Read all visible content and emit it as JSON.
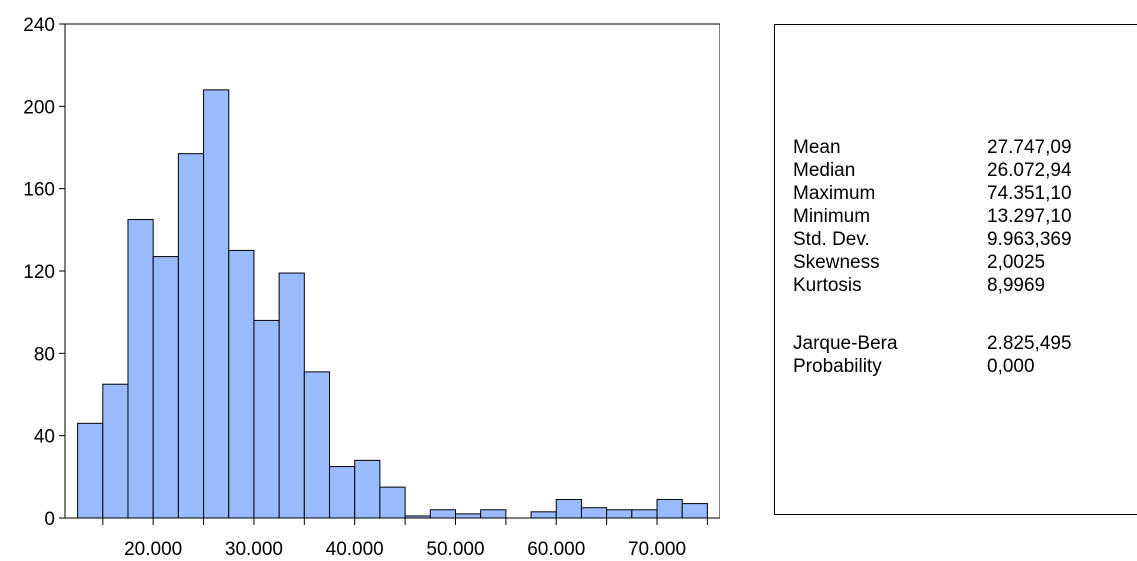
{
  "chart_data": {
    "type": "bar",
    "subtype": "histogram",
    "bin_width": 2500,
    "bins": [
      {
        "x0": 12500,
        "x1": 15000,
        "count": 46
      },
      {
        "x0": 15000,
        "x1": 17500,
        "count": 65
      },
      {
        "x0": 17500,
        "x1": 20000,
        "count": 145
      },
      {
        "x0": 20000,
        "x1": 22500,
        "count": 127
      },
      {
        "x0": 22500,
        "x1": 25000,
        "count": 177
      },
      {
        "x0": 25000,
        "x1": 27500,
        "count": 208
      },
      {
        "x0": 27500,
        "x1": 30000,
        "count": 130
      },
      {
        "x0": 30000,
        "x1": 32500,
        "count": 96
      },
      {
        "x0": 32500,
        "x1": 35000,
        "count": 119
      },
      {
        "x0": 35000,
        "x1": 37500,
        "count": 71
      },
      {
        "x0": 37500,
        "x1": 40000,
        "count": 25
      },
      {
        "x0": 40000,
        "x1": 42500,
        "count": 28
      },
      {
        "x0": 42500,
        "x1": 45000,
        "count": 15
      },
      {
        "x0": 45000,
        "x1": 47500,
        "count": 1
      },
      {
        "x0": 47500,
        "x1": 50000,
        "count": 4
      },
      {
        "x0": 50000,
        "x1": 52500,
        "count": 2
      },
      {
        "x0": 52500,
        "x1": 55000,
        "count": 4
      },
      {
        "x0": 55000,
        "x1": 57500,
        "count": 0
      },
      {
        "x0": 57500,
        "x1": 60000,
        "count": 3
      },
      {
        "x0": 60000,
        "x1": 62500,
        "count": 9
      },
      {
        "x0": 62500,
        "x1": 65000,
        "count": 5
      },
      {
        "x0": 65000,
        "x1": 67500,
        "count": 4
      },
      {
        "x0": 67500,
        "x1": 70000,
        "count": 4
      },
      {
        "x0": 70000,
        "x1": 72500,
        "count": 9
      },
      {
        "x0": 72500,
        "x1": 75000,
        "count": 7
      }
    ],
    "xlim": [
      11250,
      76250
    ],
    "ylim": [
      0,
      240
    ],
    "x_ticks": [
      {
        "value": 20000,
        "label": "20.000"
      },
      {
        "value": 30000,
        "label": "30.000"
      },
      {
        "value": 40000,
        "label": "40.000"
      },
      {
        "value": 50000,
        "label": "50.000"
      },
      {
        "value": 60000,
        "label": "60.000"
      },
      {
        "value": 70000,
        "label": "70.000"
      }
    ],
    "y_ticks": [
      {
        "value": 0,
        "label": "0"
      },
      {
        "value": 40,
        "label": "40"
      },
      {
        "value": 80,
        "label": "80"
      },
      {
        "value": 120,
        "label": "120"
      },
      {
        "value": 160,
        "label": "160"
      },
      {
        "value": 200,
        "label": "200"
      },
      {
        "value": 240,
        "label": "240"
      }
    ],
    "title": "",
    "xlabel": "",
    "ylabel": "",
    "grid": false,
    "bar_color": "#99bbff"
  },
  "stats": [
    {
      "label": "Mean",
      "value": "27.747,09"
    },
    {
      "label": "Median",
      "value": "26.072,94"
    },
    {
      "label": "Maximum",
      "value": "74.351,10"
    },
    {
      "label": "Minimum",
      "value": "13.297,10"
    },
    {
      "label": "Std. Dev.",
      "value": "9.963,369"
    },
    {
      "label": "Skewness",
      "value": "2,0025"
    },
    {
      "label": "Kurtosis",
      "value": "8,9969"
    },
    {
      "label": "Jarque-Bera",
      "value": "2.825,495"
    },
    {
      "label": "Probability",
      "value": "0,000"
    }
  ]
}
